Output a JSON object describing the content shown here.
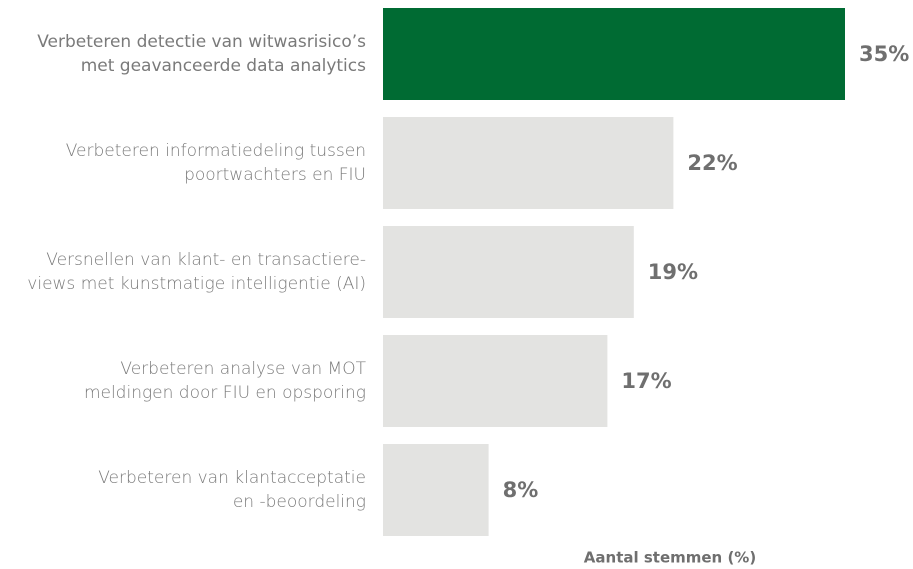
{
  "chart_data": {
    "type": "barh",
    "categories": [
      [
        "Verbeteren detectie van witwasrisico’s",
        "met geavanceerde data analytics"
      ],
      [
        "Verbeteren informatiedeling tussen",
        "poortwachters en FIU"
      ],
      [
        "Versnellen van klant- en transactiere-",
        "views met kunstmatige intelligentie (AI)"
      ],
      [
        "Verbeteren analyse van MOT",
        "meldingen door FIU en opsporing"
      ],
      [
        "Verbeteren van klantacceptatie",
        "en -beoordeling"
      ]
    ],
    "values": [
      35,
      22,
      19,
      17,
      8
    ],
    "value_labels": [
      "35%",
      "22%",
      "19%",
      "17%",
      "8%"
    ],
    "colors": [
      "#006b33",
      "#e3e3e1",
      "#e3e3e1",
      "#e3e3e1",
      "#e3e3e1"
    ],
    "xlabel": "Aantal stemmen (%)"
  }
}
